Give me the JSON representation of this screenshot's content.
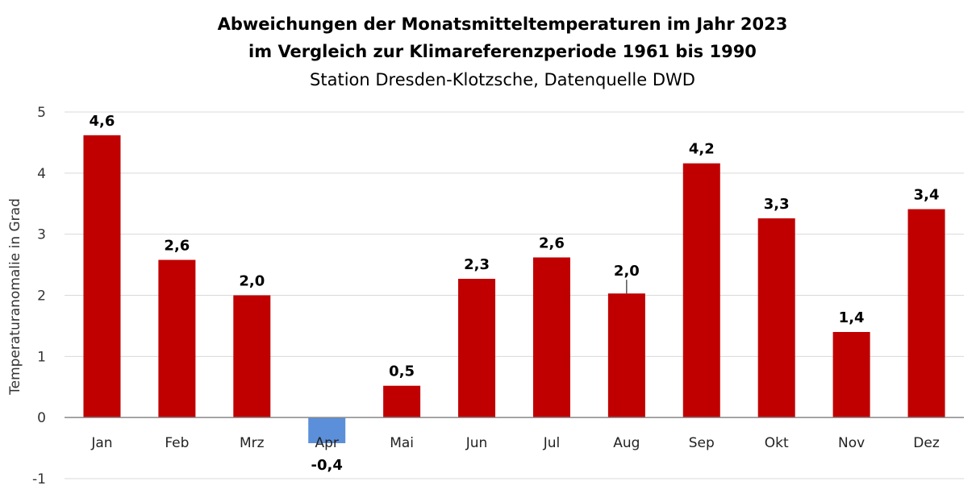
{
  "chart_data": {
    "type": "bar",
    "title": "Abweichungen der Monatsmitteltemperaturen im Jahr 2023",
    "title2": "im Vergleich zur Klimareferenzperiode 1961 bis 1990",
    "subtitle": "Station Dresden-Klotzsche, Datenquelle DWD",
    "xlabel": "",
    "ylabel": "Temperaturanomalie in Grad",
    "ylim": [
      -1,
      5
    ],
    "yticks": [
      "-1",
      "0",
      "1",
      "2",
      "3",
      "4",
      "5"
    ],
    "grid": true,
    "categories": [
      "Jan",
      "Feb",
      "Mrz",
      "Apr",
      "Mai",
      "Jun",
      "Jul",
      "Aug",
      "Sep",
      "Okt",
      "Nov",
      "Dez"
    ],
    "values": [
      4.62,
      2.58,
      2.0,
      -0.42,
      0.52,
      2.27,
      2.62,
      2.03,
      4.16,
      3.26,
      1.4,
      3.41
    ],
    "labels": [
      "4,6",
      "2,6",
      "2,0",
      "-0,4",
      "0,5",
      "2,3",
      "2,6",
      "2,0",
      "4,2",
      "3,3",
      "1,4",
      "3,4"
    ],
    "colors": {
      "positive": "#C00000",
      "negative": "#5B8FD9",
      "grid": "#D9D9D9"
    }
  }
}
